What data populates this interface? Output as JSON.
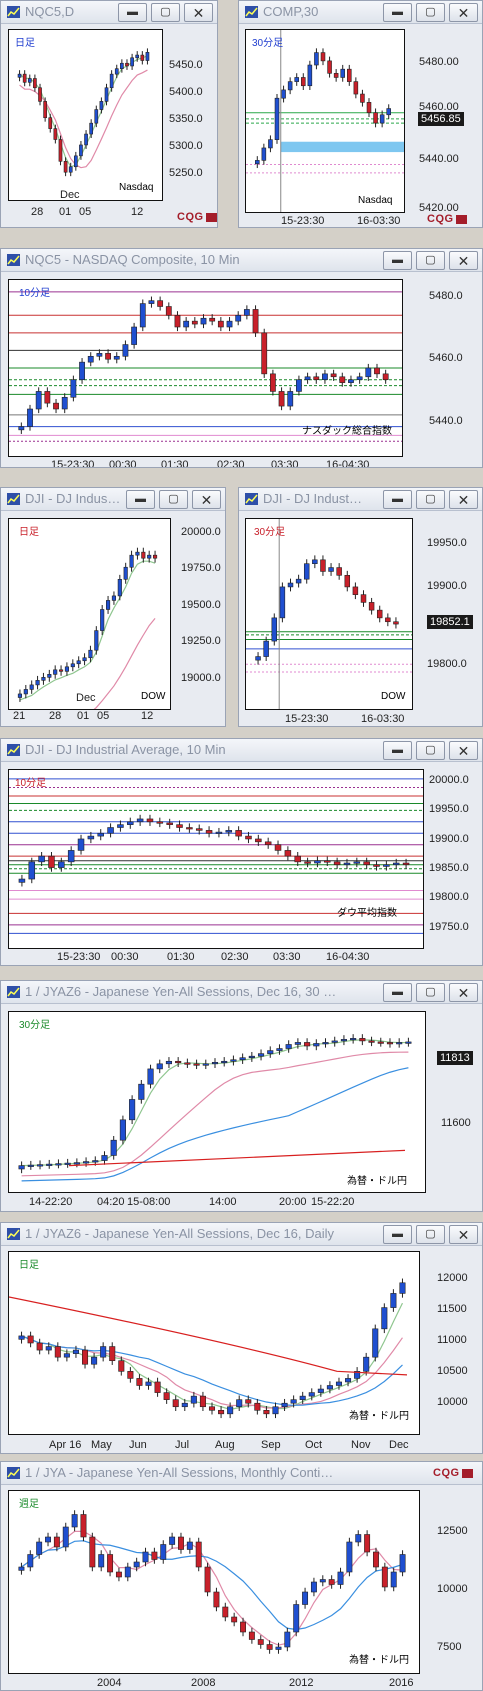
{
  "colors": {
    "up": "#1f4fd0",
    "down": "#c8202a",
    "ma_short": "#8fc68f",
    "ma_mid": "#e08aa8",
    "ma_long": "#3a8fe0",
    "ma_200": "#d82020",
    "accent_blue": "#1e3ccf"
  },
  "branding": "CQG",
  "panels": [
    {
      "id": "p1",
      "title": "NQC5,D",
      "period": "日足",
      "tag": "Nasdaq",
      "tag_color": "#1e3ccf",
      "yticks": [
        "5450.0",
        "5400.0",
        "5350.0",
        "5300.0",
        "5250.0"
      ],
      "xticks": [
        "28",
        "01",
        "05",
        "12"
      ],
      "xsub": "Dec"
    },
    {
      "id": "p2",
      "title": "COMP,30",
      "period": "30分足",
      "tag": "Nasdaq",
      "tag_color": "#1e3ccf",
      "yticks": [
        "5480.00",
        "5460.00",
        "5440.00",
        "5420.00"
      ],
      "last": "5456.85",
      "xticks": [
        "15-23:30",
        "16-03:30"
      ]
    },
    {
      "id": "p3",
      "title": "NQC5 - NASDAQ Composite, 10 Min",
      "period": "10分足",
      "tag": "ナスダック総合指数",
      "tag_color": "#1e3ccf",
      "yticks": [
        "5480.0",
        "5460.0",
        "5440.0"
      ],
      "xticks": [
        "15-23:30",
        "00:30",
        "01:30",
        "02:30",
        "03:30",
        "16-04:30"
      ]
    },
    {
      "id": "p4",
      "title": "DJI - DJ Indus…",
      "period": "日足",
      "tag": "DOW",
      "tag_color": "#c8202a",
      "yticks": [
        "20000.0",
        "19750.0",
        "19500.0",
        "19250.0",
        "19000.0"
      ],
      "xticks": [
        "21",
        "28",
        "01",
        "05",
        "12"
      ],
      "xsub": "Dec"
    },
    {
      "id": "p5",
      "title": "DJI - DJ Indust…",
      "period": "30分足",
      "tag": "DOW",
      "tag_color": "#c8202a",
      "yticks": [
        "19950.0",
        "19900.0",
        "19800.0"
      ],
      "last": "19852.1",
      "xticks": [
        "15-23:30",
        "16-03:30"
      ]
    },
    {
      "id": "p6",
      "title": "DJI - DJ Industrial Average, 10 Min",
      "period": "10分足",
      "tag": "ダウ平均指数",
      "tag_color": "#c8202a",
      "yticks": [
        "20000.0",
        "19950.0",
        "19900.0",
        "19850.0",
        "19800.0",
        "19750.0"
      ],
      "xticks": [
        "15-23:30",
        "00:30",
        "01:30",
        "02:30",
        "03:30",
        "16-04:30"
      ]
    },
    {
      "id": "p7",
      "title": "1 / JYAZ6 - Japanese Yen-All Sessions, Dec 16, 30 …",
      "period": "30分足",
      "tag": "為替・ドル円",
      "tag_color": "#1a8a2a",
      "yticks": [
        "11600"
      ],
      "last": "11813",
      "xticks": [
        "14-22:20",
        "04:20",
        "15-08:00",
        "14:00",
        "20:00",
        "15-22:20"
      ]
    },
    {
      "id": "p8",
      "title": "1 / JYAZ6 - Japanese Yen-All Sessions, Dec 16, Daily",
      "period": "日足",
      "tag": "為替・ドル円",
      "tag_color": "#1a8a2a",
      "yticks": [
        "12000",
        "11500",
        "11000",
        "10500",
        "10000"
      ],
      "xticks": [
        "Apr 16",
        "May",
        "Jun",
        "Jul",
        "Aug",
        "Sep",
        "Oct",
        "Nov",
        "Dec"
      ]
    },
    {
      "id": "p9",
      "title": "1 / JYA - Japanese Yen-All Sessions, Monthly Conti…",
      "period": "週足",
      "tag": "為替・ドル円",
      "tag_color": "#1a8a2a",
      "yticks": [
        "12500",
        "10000",
        "7500"
      ],
      "xticks": [
        "2004",
        "2008",
        "2012",
        "2016"
      ]
    }
  ],
  "chart_data": [
    {
      "type": "candlestick",
      "symbol": "NQC5",
      "timeframe": "daily",
      "ylim": [
        5200,
        5490
      ],
      "closes": [
        5420,
        5405,
        5412,
        5395,
        5370,
        5340,
        5320,
        5300,
        5260,
        5240,
        5250,
        5270,
        5290,
        5310,
        5330,
        5355,
        5370,
        5395,
        5420,
        5430,
        5440,
        5435,
        5450,
        5455,
        5445,
        5460
      ]
    },
    {
      "type": "candlestick",
      "symbol": "COMP",
      "timeframe": "30min",
      "ylim": [
        5410,
        5492
      ],
      "closes": [
        5432,
        5438,
        5442,
        5462,
        5466,
        5470,
        5472,
        5468,
        5478,
        5484,
        5480,
        5474,
        5472,
        5476,
        5470,
        5464,
        5460,
        5455,
        5450,
        5454,
        5457
      ]
    },
    {
      "type": "candlestick",
      "symbol": "NQC5 NASDAQ Composite",
      "timeframe": "10min",
      "ylim": [
        5432,
        5488
      ],
      "closes": [
        5440,
        5446,
        5452,
        5448,
        5446,
        5450,
        5456,
        5462,
        5464,
        5465,
        5463,
        5464,
        5468,
        5474,
        5482,
        5483,
        5481,
        5478,
        5474,
        5476,
        5475,
        5477,
        5476,
        5474,
        5476,
        5478,
        5480,
        5472,
        5458,
        5452,
        5447,
        5452,
        5456,
        5457,
        5456,
        5458,
        5457,
        5455,
        5456,
        5457,
        5460,
        5458,
        5456
      ]
    },
    {
      "type": "candlestick",
      "symbol": "DJI",
      "timeframe": "daily",
      "ylim": [
        18900,
        20080
      ],
      "closes": [
        18960,
        18990,
        19020,
        19050,
        19070,
        19090,
        19120,
        19110,
        19140,
        19160,
        19180,
        19200,
        19250,
        19380,
        19520,
        19580,
        19610,
        19720,
        19800,
        19880,
        19900,
        19860,
        19880,
        19860
      ]
    },
    {
      "type": "candlestick",
      "symbol": "DJI",
      "timeframe": "30min",
      "ylim": [
        19750,
        19980
      ],
      "closes": [
        19810,
        19830,
        19860,
        19900,
        19905,
        19910,
        19930,
        19935,
        19920,
        19925,
        19915,
        19900,
        19890,
        19880,
        19870,
        19860,
        19855,
        19852
      ]
    },
    {
      "type": "candlestick",
      "symbol": "DJI DJ Industrial Average",
      "timeframe": "10min",
      "ylim": [
        19720,
        20010
      ],
      "closes": [
        19830,
        19860,
        19870,
        19850,
        19860,
        19880,
        19900,
        19905,
        19910,
        19920,
        19925,
        19930,
        19935,
        19930,
        19928,
        19925,
        19920,
        19918,
        19915,
        19910,
        19912,
        19915,
        19905,
        19900,
        19895,
        19890,
        19880,
        19870,
        19860,
        19858,
        19862,
        19860,
        19855,
        19858,
        19860,
        19855,
        19852,
        19855,
        19858,
        19855
      ]
    },
    {
      "type": "candlestick",
      "symbol": "1/JYAZ6",
      "timeframe": "30min",
      "ylim": [
        11530,
        11860
      ],
      "closes": [
        11570,
        11571,
        11572,
        11573,
        11574,
        11575,
        11576,
        11578,
        11580,
        11590,
        11620,
        11660,
        11700,
        11730,
        11760,
        11770,
        11775,
        11772,
        11770,
        11768,
        11770,
        11773,
        11775,
        11778,
        11782,
        11785,
        11790,
        11796,
        11800,
        11808,
        11812,
        11805,
        11810,
        11812,
        11815,
        11818,
        11820,
        11815,
        11813,
        11812,
        11810,
        11812,
        11813
      ]
    },
    {
      "type": "candlestick",
      "symbol": "1/JYAZ6",
      "timeframe": "daily",
      "ylim": [
        9800,
        12200
      ],
      "closes": [
        11100,
        11000,
        10900,
        10950,
        10800,
        10850,
        10900,
        10700,
        10800,
        10950,
        10750,
        10600,
        10500,
        10400,
        10450,
        10300,
        10200,
        10100,
        10150,
        10250,
        10100,
        10050,
        10000,
        10100,
        10200,
        10150,
        10050,
        10000,
        10100,
        10150,
        10200,
        10250,
        10300,
        10350,
        10400,
        10450,
        10500,
        10600,
        10800,
        11200,
        11500,
        11700,
        11850
      ]
    },
    {
      "type": "candlestick",
      "symbol": "1/JYA",
      "timeframe": "monthly",
      "ylim": [
        7000,
        13800
      ],
      "closes": [
        11000,
        11500,
        12000,
        12200,
        11800,
        12600,
        13100,
        12200,
        11000,
        11500,
        10800,
        10600,
        11000,
        11200,
        11600,
        11300,
        11900,
        12200,
        11700,
        12000,
        11000,
        10000,
        9400,
        9000,
        8800,
        8400,
        8100,
        7900,
        7700,
        7800,
        8400,
        9500,
        10000,
        10400,
        10500,
        10300,
        10800,
        12000,
        12300,
        11600,
        11000,
        10200,
        10800,
        11500
      ]
    }
  ]
}
